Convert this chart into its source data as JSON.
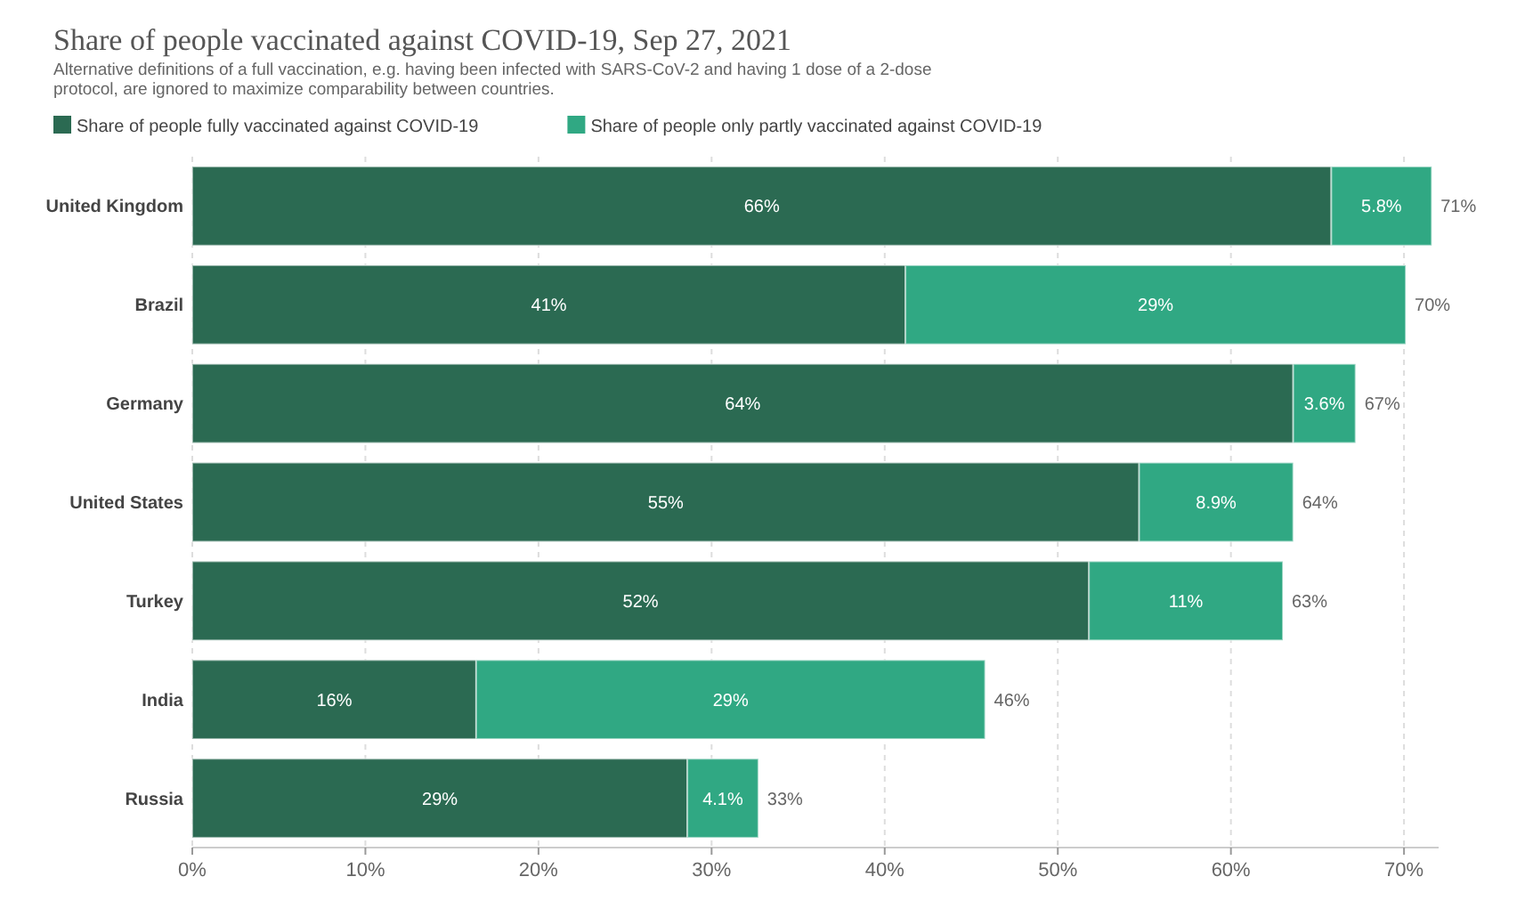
{
  "chart_data": {
    "type": "bar",
    "orientation": "horizontal",
    "stacked": true,
    "title": "Share of people vaccinated against COVID-19, Sep 27, 2021",
    "subtitle": "Alternative definitions of a full vaccination, e.g. having been infected with SARS-CoV-2 and having 1 dose of a 2-dose protocol, are ignored to maximize comparability between countries.",
    "categories": [
      "United Kingdom",
      "Brazil",
      "Germany",
      "United States",
      "Turkey",
      "India",
      "Russia"
    ],
    "series": [
      {
        "name": "Share of people fully vaccinated against COVID-19",
        "color": "#2b6a52",
        "values": [
          65.8,
          41.2,
          63.6,
          54.7,
          51.8,
          16.4,
          28.6
        ],
        "value_labels": [
          "66%",
          "41%",
          "64%",
          "55%",
          "52%",
          "16%",
          "29%"
        ]
      },
      {
        "name": "Share of people only partly vaccinated against COVID-19",
        "color": "#30a883",
        "values": [
          5.8,
          28.9,
          3.6,
          8.9,
          11.2,
          29.4,
          4.1
        ],
        "value_labels": [
          "5.8%",
          "29%",
          "3.6%",
          "8.9%",
          "11%",
          "29%",
          "4.1%"
        ]
      }
    ],
    "totals": [
      "71%",
      "70%",
      "67%",
      "64%",
      "63%",
      "46%",
      "33%"
    ],
    "xlim": [
      0,
      72
    ],
    "xticks": [
      {
        "value": 0,
        "label": "0%"
      },
      {
        "value": 10,
        "label": "10%"
      },
      {
        "value": 20,
        "label": "20%"
      },
      {
        "value": 30,
        "label": "30%"
      },
      {
        "value": 40,
        "label": "40%"
      },
      {
        "value": 50,
        "label": "50%"
      },
      {
        "value": 60,
        "label": "60%"
      },
      {
        "value": 70,
        "label": "70%"
      }
    ],
    "grid": "x",
    "legend": "top left"
  }
}
